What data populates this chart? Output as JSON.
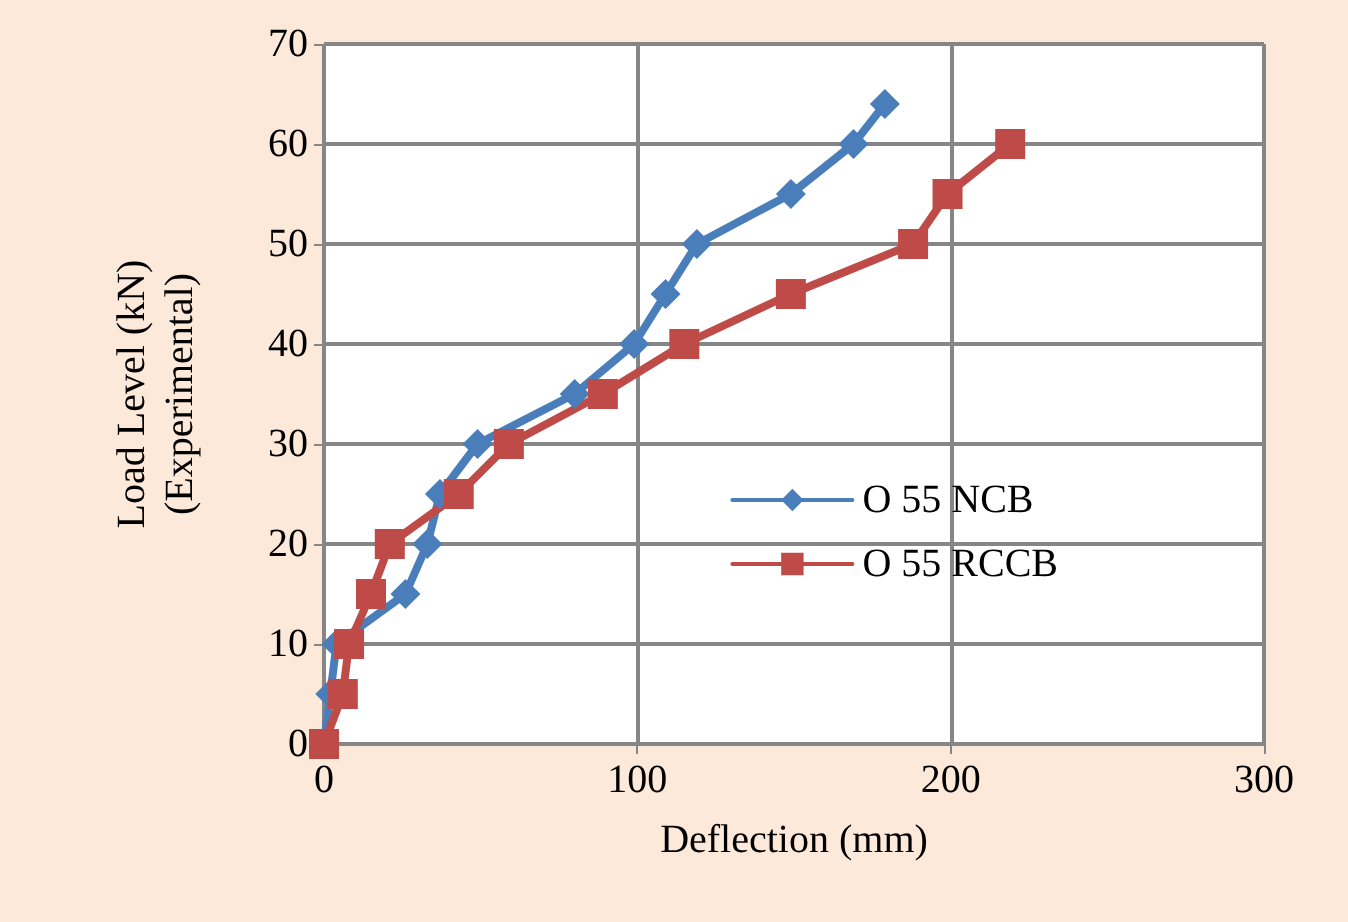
{
  "chart_data": {
    "type": "line",
    "xlabel": "Deflection (mm)",
    "ylabel": "Load Level (kN)\n(Experimental)",
    "xlim": [
      0,
      300
    ],
    "xticks": [
      0,
      100,
      200,
      300
    ],
    "ylim": [
      0,
      70
    ],
    "yticks": [
      0,
      10,
      20,
      30,
      40,
      50,
      60,
      70
    ],
    "grid": true,
    "legend": "right",
    "series": [
      {
        "name": "O 55 NCB",
        "color": "#4a7ebb",
        "marker": "diamond",
        "x": [
          0,
          2,
          4,
          26,
          33,
          37,
          49,
          80,
          99,
          109,
          119,
          149,
          169,
          179
        ],
        "values": [
          0,
          5,
          10,
          15,
          20,
          25,
          30,
          35,
          40,
          45,
          50,
          55,
          60,
          64
        ]
      },
      {
        "name": "O 55 RCCB",
        "color": "#be4b48",
        "marker": "square",
        "x": [
          0,
          6,
          8,
          15,
          21,
          43,
          59,
          89,
          115,
          149,
          188,
          199,
          219
        ],
        "values": [
          0,
          5,
          10,
          15,
          20,
          25,
          30,
          35,
          40,
          45,
          50,
          55,
          60
        ]
      }
    ]
  }
}
